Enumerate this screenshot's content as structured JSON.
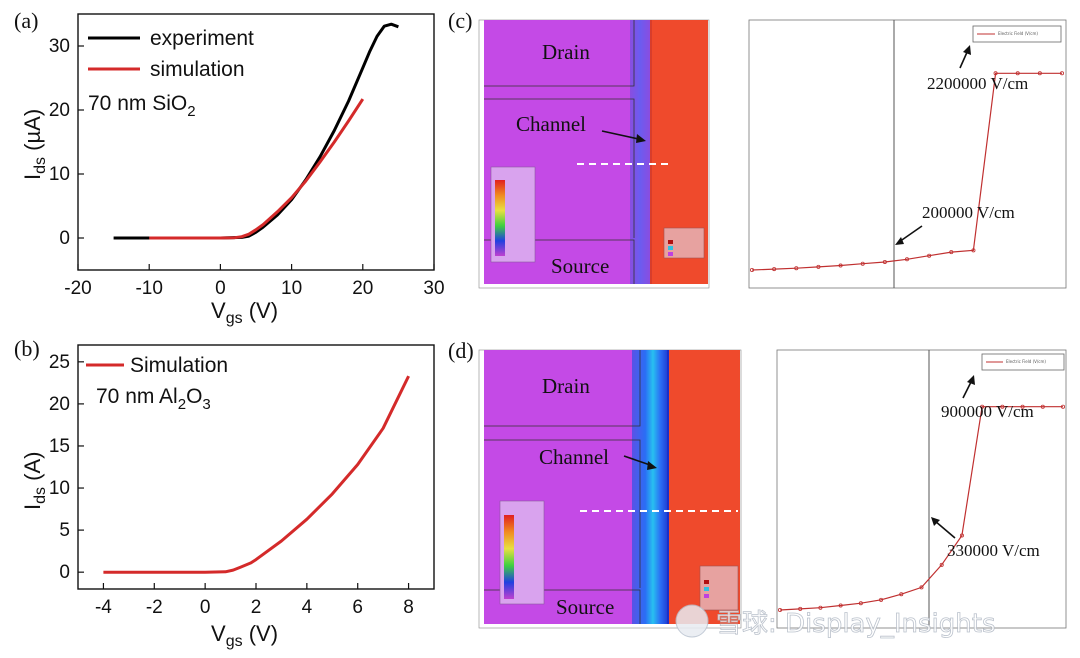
{
  "watermark": "雪球: Display_Insights",
  "chart_data": [
    {
      "id": "a",
      "panel_label": "(a)",
      "type": "line",
      "xlabel_main": "V",
      "xlabel_sub": "gs",
      "xlabel_unit": " (V)",
      "ylabel_main": "I",
      "ylabel_sub": "ds",
      "ylabel_unit": " (µA)",
      "xlim": [
        -20,
        30
      ],
      "ylim": [
        -5,
        35
      ],
      "xticks": [
        -20,
        -10,
        0,
        10,
        20,
        30
      ],
      "yticks": [
        0,
        10,
        20,
        30
      ],
      "annotation_main": "70 nm SiO",
      "annotation_sub": "2",
      "series": [
        {
          "name": "experiment",
          "color": "#000000",
          "x": [
            -15,
            -10,
            -5,
            0,
            3,
            4,
            5,
            6,
            8,
            10,
            12,
            14,
            16,
            18,
            20,
            21,
            22,
            23,
            24,
            25
          ],
          "y": [
            0,
            0,
            0,
            0,
            0.1,
            0.3,
            0.9,
            1.7,
            3.6,
            6,
            9.1,
            12.7,
            16.8,
            21.4,
            26.6,
            29.2,
            31.5,
            33.1,
            33.4,
            33
          ]
        },
        {
          "name": "simulation",
          "color": "#d42a2a",
          "x": [
            -10,
            -5,
            0,
            2,
            3,
            4,
            5,
            6,
            8,
            10,
            12,
            14,
            16,
            18,
            20
          ],
          "y": [
            0,
            0,
            0,
            0.05,
            0.2,
            0.6,
            1.3,
            2.1,
            4.1,
            6.3,
            8.9,
            11.9,
            15,
            18.3,
            21.7
          ]
        }
      ]
    },
    {
      "id": "b",
      "panel_label": "(b)",
      "type": "line",
      "xlabel_main": "V",
      "xlabel_sub": "gs",
      "xlabel_unit": " (V)",
      "ylabel_main": "I",
      "ylabel_sub": "ds",
      "ylabel_unit": " (A)",
      "xlim": [
        -5,
        9
      ],
      "ylim": [
        -2,
        27
      ],
      "xticks": [
        -4,
        -2,
        0,
        2,
        4,
        6,
        8
      ],
      "yticks": [
        0,
        5,
        10,
        15,
        20,
        25
      ],
      "annotation_main": "70 nm Al",
      "annotation_sub1": "2",
      "annotation_mid": "O",
      "annotation_sub2": "3",
      "series": [
        {
          "name": "Simulation",
          "color": "#d42a2a",
          "x": [
            -4,
            -2,
            0,
            0.8,
            1.1,
            1.4,
            1.8,
            2,
            3,
            4,
            5,
            6,
            7,
            8
          ],
          "y": [
            0,
            0,
            0,
            0.05,
            0.25,
            0.6,
            1.1,
            1.5,
            3.7,
            6.3,
            9.3,
            12.8,
            17.1,
            23.3
          ]
        }
      ]
    },
    {
      "id": "c",
      "panel_label": "(c)",
      "type": "heatmap",
      "regions": [
        "Drain",
        "Channel",
        "Source"
      ],
      "line_series_name": "Electric Field (V/cm)",
      "annotations": [
        "2200000 V/cm",
        "200000 V/cm"
      ],
      "field_profile": {
        "x": [
          0,
          1,
          2,
          3,
          4,
          5,
          6,
          7,
          8,
          9,
          10,
          11,
          12,
          13,
          14
        ],
        "y": [
          0,
          0.1,
          0.2,
          0.35,
          0.5,
          0.7,
          0.9,
          1.2,
          1.6,
          2.0,
          2.2,
          22,
          22,
          22,
          22
        ]
      }
    },
    {
      "id": "d",
      "panel_label": "(d)",
      "type": "heatmap",
      "regions": [
        "Drain",
        "Channel",
        "Source"
      ],
      "line_series_name": "Electric Field (V/cm)",
      "annotations": [
        "900000 V/cm",
        "330000 V/cm"
      ],
      "field_profile": {
        "x": [
          0,
          1,
          2,
          3,
          4,
          5,
          6,
          7,
          8,
          9,
          10,
          11,
          12,
          13,
          14
        ],
        "y": [
          0,
          0.05,
          0.1,
          0.2,
          0.3,
          0.45,
          0.7,
          1.0,
          2.0,
          3.3,
          9,
          9,
          9,
          9,
          9
        ]
      }
    }
  ]
}
